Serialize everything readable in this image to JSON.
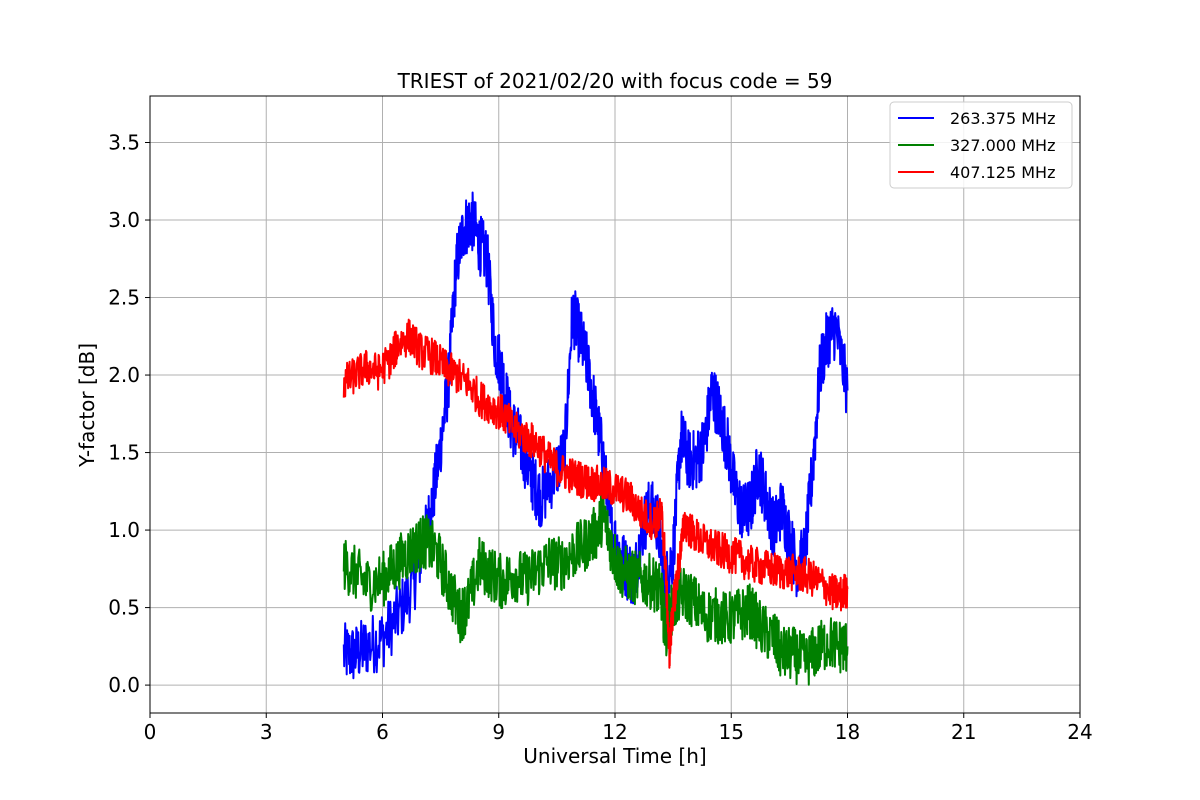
{
  "chart_data": {
    "type": "line",
    "title": "TRIEST of 2021/02/20 with focus code = 59",
    "xlabel": "Universal Time [h]",
    "ylabel": "Y-factor [dB]",
    "xlim": [
      0,
      24
    ],
    "ylim": [
      -0.18,
      3.8
    ],
    "xticks": [
      0,
      3,
      6,
      9,
      12,
      15,
      18,
      21,
      24
    ],
    "xtick_labels": [
      "0",
      "3",
      "6",
      "9",
      "12",
      "15",
      "18",
      "21",
      "24"
    ],
    "yticks": [
      0.0,
      0.5,
      1.0,
      1.5,
      2.0,
      2.5,
      3.0,
      3.5
    ],
    "ytick_labels": [
      "0.0",
      "0.5",
      "1.0",
      "1.5",
      "2.0",
      "2.5",
      "3.0",
      "3.5"
    ],
    "grid": true,
    "legend_position": "top-right",
    "noise_level": [
      0.2,
      0.18,
      0.12
    ],
    "series": [
      {
        "name": "263.375 MHz",
        "color": "#0000ff",
        "x": [
          5.0,
          5.3,
          5.6,
          6.0,
          6.4,
          6.8,
          7.1,
          7.3,
          7.5,
          7.7,
          7.9,
          8.1,
          8.3,
          8.5,
          8.7,
          8.9,
          9.1,
          9.3,
          9.5,
          9.7,
          9.9,
          10.1,
          10.4,
          10.7,
          10.9,
          11.1,
          11.3,
          11.5,
          11.7,
          11.9,
          12.1,
          12.3,
          12.5,
          12.7,
          12.9,
          13.1,
          13.3,
          13.5,
          13.7,
          13.9,
          14.1,
          14.3,
          14.5,
          14.7,
          14.9,
          15.1,
          15.3,
          15.5,
          15.7,
          15.9,
          16.1,
          16.3,
          16.5,
          16.7,
          16.9,
          17.1,
          17.3,
          17.5,
          17.7,
          18.0
        ],
        "y": [
          0.2,
          0.2,
          0.25,
          0.3,
          0.45,
          0.65,
          0.95,
          1.2,
          1.55,
          1.95,
          2.7,
          2.95,
          3.0,
          2.85,
          2.75,
          2.2,
          2.0,
          1.7,
          1.6,
          1.45,
          1.3,
          1.2,
          1.35,
          1.5,
          2.4,
          2.25,
          2.05,
          1.75,
          1.45,
          1.0,
          0.85,
          0.75,
          0.7,
          1.0,
          1.15,
          1.05,
          0.65,
          0.85,
          1.6,
          1.45,
          1.45,
          1.55,
          1.9,
          1.75,
          1.55,
          1.25,
          1.1,
          1.15,
          1.4,
          1.2,
          1.0,
          1.15,
          0.95,
          0.75,
          0.85,
          1.4,
          2.05,
          2.25,
          2.3,
          1.9
        ]
      },
      {
        "name": "327.000 MHz",
        "color": "#008000",
        "x": [
          5.0,
          5.3,
          5.6,
          6.0,
          6.3,
          6.6,
          6.9,
          7.1,
          7.4,
          7.7,
          8.0,
          8.2,
          8.5,
          8.8,
          9.1,
          9.4,
          9.7,
          10.0,
          10.3,
          10.6,
          10.9,
          11.2,
          11.5,
          11.7,
          11.9,
          12.1,
          12.4,
          12.7,
          13.0,
          13.2,
          13.3,
          13.5,
          13.7,
          14.0,
          14.3,
          14.6,
          14.9,
          15.2,
          15.5,
          15.8,
          16.1,
          16.3,
          16.6,
          16.9,
          17.2,
          17.5,
          17.8,
          18.0
        ],
        "y": [
          0.78,
          0.72,
          0.65,
          0.68,
          0.76,
          0.84,
          0.9,
          0.93,
          0.85,
          0.65,
          0.45,
          0.52,
          0.78,
          0.72,
          0.66,
          0.72,
          0.68,
          0.74,
          0.8,
          0.78,
          0.85,
          0.9,
          0.98,
          1.1,
          0.9,
          0.75,
          0.7,
          0.68,
          0.66,
          0.58,
          0.35,
          0.5,
          0.6,
          0.55,
          0.45,
          0.45,
          0.42,
          0.45,
          0.48,
          0.35,
          0.3,
          0.2,
          0.2,
          0.15,
          0.22,
          0.28,
          0.25,
          0.25
        ]
      },
      {
        "name": "407.125 MHz",
        "color": "#ff0000",
        "x": [
          5.0,
          5.3,
          5.6,
          5.9,
          6.2,
          6.4,
          6.7,
          7.0,
          7.3,
          7.6,
          7.9,
          8.2,
          8.5,
          8.8,
          9.1,
          9.4,
          9.7,
          10.0,
          10.3,
          10.6,
          10.9,
          11.2,
          11.5,
          11.8,
          12.1,
          12.4,
          12.7,
          13.0,
          13.2,
          13.3,
          13.4,
          13.5,
          13.6,
          13.8,
          14.0,
          14.3,
          14.6,
          14.9,
          15.2,
          15.5,
          15.8,
          16.1,
          16.4,
          16.7,
          17.0,
          17.3,
          17.6,
          17.8,
          18.0
        ],
        "y": [
          1.95,
          2.0,
          2.05,
          2.02,
          2.1,
          2.2,
          2.25,
          2.15,
          2.12,
          2.05,
          2.0,
          1.95,
          1.85,
          1.8,
          1.75,
          1.65,
          1.6,
          1.55,
          1.45,
          1.38,
          1.35,
          1.32,
          1.3,
          1.28,
          1.25,
          1.2,
          1.1,
          1.05,
          1.1,
          0.8,
          0.2,
          0.5,
          0.7,
          1.05,
          0.98,
          0.92,
          0.88,
          0.85,
          0.82,
          0.78,
          0.76,
          0.74,
          0.73,
          0.72,
          0.7,
          0.66,
          0.6,
          0.58,
          0.62
        ]
      }
    ]
  }
}
